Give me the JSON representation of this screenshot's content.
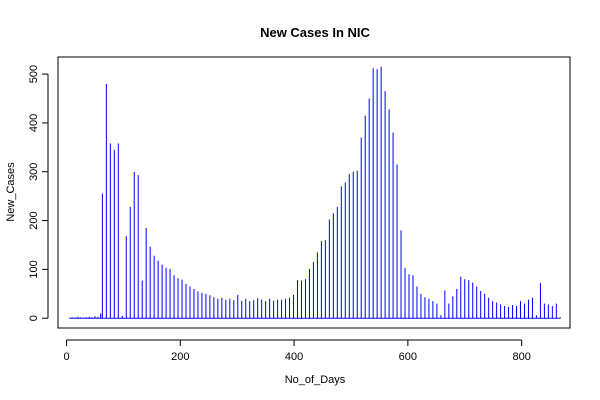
{
  "chart_data": {
    "type": "bar",
    "title": "New Cases In NIC",
    "xlabel": "No_of_Days",
    "ylabel": "New_Cases",
    "xlim": [
      -15,
      885
    ],
    "ylim": [
      -20,
      535
    ],
    "xticks": [
      0,
      200,
      400,
      600,
      800
    ],
    "yticks": [
      0,
      100,
      200,
      300,
      400,
      500
    ],
    "series_color": "#0000ff",
    "x": [
      5,
      10,
      15,
      20,
      25,
      30,
      35,
      40,
      45,
      50,
      55,
      60,
      63,
      70,
      77,
      84,
      91,
      98,
      105,
      112,
      119,
      126,
      133,
      140,
      147,
      154,
      161,
      168,
      175,
      182,
      189,
      196,
      203,
      210,
      217,
      224,
      231,
      238,
      245,
      252,
      259,
      266,
      273,
      280,
      287,
      294,
      301,
      308,
      315,
      322,
      329,
      336,
      343,
      350,
      357,
      364,
      371,
      378,
      385,
      392,
      399,
      406,
      413,
      420,
      427,
      434,
      441,
      448,
      455,
      462,
      469,
      476,
      483,
      490,
      497,
      504,
      511,
      518,
      525,
      532,
      539,
      546,
      553,
      560,
      567,
      574,
      581,
      588,
      595,
      602,
      609,
      616,
      623,
      630,
      637,
      644,
      651,
      658,
      665,
      672,
      679,
      686,
      693,
      700,
      707,
      714,
      721,
      728,
      735,
      742,
      749,
      756,
      763,
      770,
      777,
      784,
      791,
      798,
      805,
      812,
      819,
      826,
      833,
      840,
      847,
      854,
      861,
      868
    ],
    "values": [
      1,
      2,
      1,
      3,
      2,
      1,
      2,
      3,
      2,
      4,
      3,
      10,
      255,
      480,
      358,
      345,
      358,
      5,
      168,
      228,
      300,
      293,
      77,
      185,
      147,
      128,
      118,
      110,
      103,
      101,
      88,
      82,
      79,
      70,
      65,
      60,
      55,
      52,
      50,
      47,
      43,
      40,
      42,
      38,
      40,
      37,
      48,
      36,
      40,
      35,
      37,
      41,
      38,
      35,
      40,
      36,
      38,
      38,
      40,
      42,
      48,
      78,
      77,
      80,
      101,
      115,
      135,
      158,
      160,
      202,
      215,
      228,
      270,
      278,
      295,
      300,
      302,
      370,
      415,
      450,
      512,
      510,
      515,
      465,
      428,
      380,
      315,
      180,
      103,
      90,
      88,
      65,
      50,
      43,
      40,
      35,
      30,
      6,
      57,
      30,
      45,
      60,
      85,
      80,
      78,
      73,
      65,
      56,
      50,
      42,
      35,
      32,
      28,
      25,
      23,
      27,
      25,
      35,
      30,
      38,
      42,
      6,
      72,
      30,
      28,
      25,
      30,
      2
    ]
  }
}
